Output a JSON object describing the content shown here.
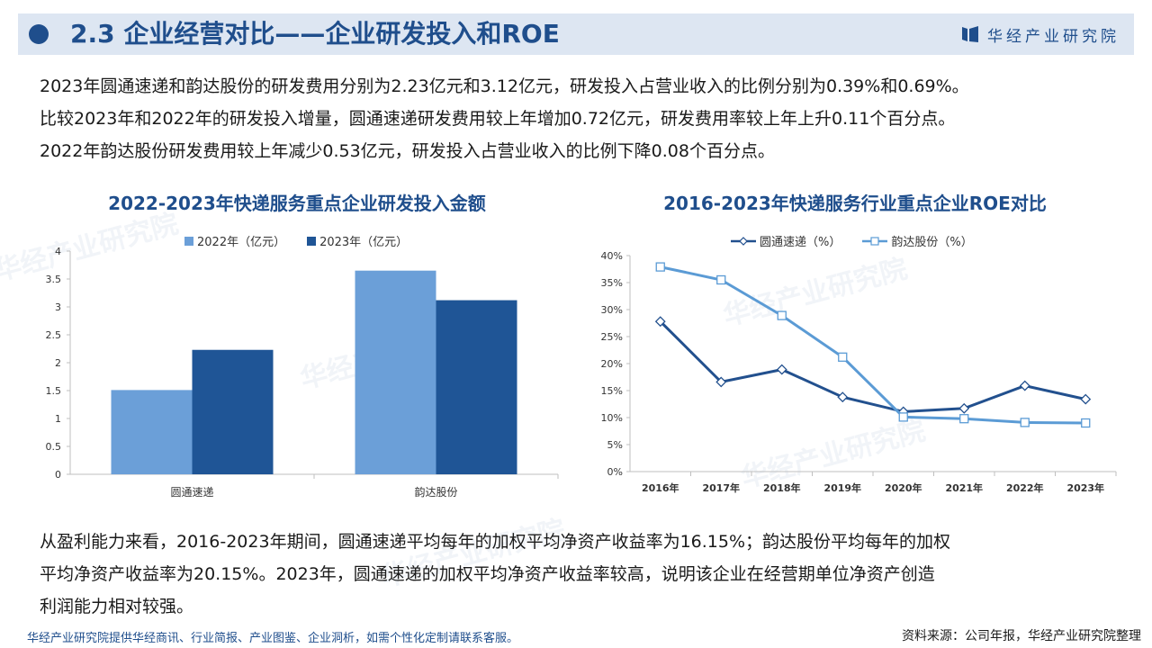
{
  "header": {
    "title": "2.3 企业经营对比——企业研发投入和ROE",
    "brand": "华经产业研究院"
  },
  "intro": {
    "line1": "2023年圆通速递和韵达股份的研发费用分别为2.23亿元和3.12亿元，研发投入占营业收入的比例分别为0.39%和0.69%。",
    "line2": "比较2023年和2022年的研发投入增量，圆通速递研发费用较上年增加0.72亿元，研发费用率较上年上升0.11个百分点。",
    "line3": "2022年韵达股份研发费用较上年减少0.53亿元，研发投入占营业收入的比例下降0.08个百分点。"
  },
  "conclusion": {
    "line1": "从盈利能力来看，2016-2023年期间，圆通速递平均每年的加权平均净资产收益率为16.15%；韵达股份平均每年的加权",
    "line2": "平均净资产收益率为20.15%。2023年，圆通速递的加权平均净资产收益率较高，说明该企业在经营期单位净资产创造",
    "line3": "利润能力相对较强。"
  },
  "footer": {
    "left": "华经产业研究院提供华经商讯、行业简报、产业图鉴、企业洞析，如需个性化定制请联系客服。",
    "right": "资料来源：公司年报，华经产业研究院整理"
  },
  "watermark_text": "华经产业研究院",
  "colors": {
    "brand": "#1f4e8c",
    "header_bg": "#dde6f2",
    "series_2022": "#6b9fd8",
    "series_2023": "#1f5596",
    "line_yuantong": "#22508e",
    "line_yunda": "#5b9bd5"
  },
  "chart_data": [
    {
      "type": "bar",
      "title": "2022-2023年快递服务重点企业研发投入金额",
      "categories": [
        "圆通速递",
        "韵达股份"
      ],
      "series": [
        {
          "name": "2022年（亿元）",
          "values": [
            1.51,
            3.65
          ],
          "color": "#6b9fd8"
        },
        {
          "name": "2023年（亿元）",
          "values": [
            2.23,
            3.12
          ],
          "color": "#1f5596"
        }
      ],
      "ylim": [
        0,
        4
      ],
      "yticks": [
        "0",
        "0.5",
        "1",
        "1.5",
        "2",
        "2.5",
        "3",
        "3.5",
        "4"
      ],
      "legend_position": "top",
      "grid": false
    },
    {
      "type": "line",
      "title": "2016-2023年快递服务行业重点企业ROE对比",
      "x": [
        "2016年",
        "2017年",
        "2018年",
        "2019年",
        "2020年",
        "2021年",
        "2022年",
        "2023年"
      ],
      "series": [
        {
          "name": "圆通速递（%）",
          "values": [
            27.8,
            16.6,
            18.9,
            13.8,
            11.1,
            11.7,
            15.9,
            13.4
          ],
          "color": "#22508e",
          "marker": "diamond"
        },
        {
          "name": "韵达股份（%）",
          "values": [
            37.9,
            35.5,
            28.9,
            21.2,
            10.1,
            9.8,
            9.1,
            9.0
          ],
          "color": "#5b9bd5",
          "marker": "square"
        }
      ],
      "ylim": [
        0,
        40
      ],
      "yticks": [
        "0%",
        "5%",
        "10%",
        "15%",
        "20%",
        "25%",
        "30%",
        "35%",
        "40%"
      ],
      "legend_position": "top",
      "grid": false
    }
  ]
}
